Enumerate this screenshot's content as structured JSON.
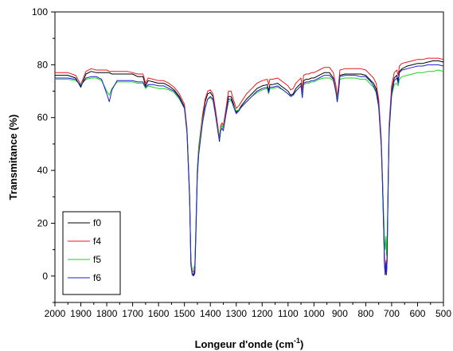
{
  "chart_data": {
    "type": "line",
    "xlabel": "Longeur d'onde (cm",
    "xlabel_sup": "-1",
    "xlabel_close": ")",
    "ylabel": "Transmitance (%)",
    "xlim": [
      2000,
      500
    ],
    "ylim": [
      -10,
      100
    ],
    "x_reversed": true,
    "x_ticks": [
      2000,
      1900,
      1800,
      1700,
      1600,
      1500,
      1400,
      1300,
      1200,
      1100,
      1000,
      900,
      800,
      700,
      600,
      500
    ],
    "y_ticks": [
      0,
      20,
      40,
      60,
      80,
      100
    ],
    "grid": false,
    "legend_position": "bottom-left",
    "x": [
      2000,
      1950,
      1920,
      1900,
      1880,
      1860,
      1840,
      1820,
      1800,
      1790,
      1780,
      1760,
      1740,
      1720,
      1700,
      1680,
      1660,
      1650,
      1640,
      1620,
      1600,
      1580,
      1560,
      1540,
      1520,
      1500,
      1490,
      1480,
      1475,
      1470,
      1465,
      1460,
      1455,
      1450,
      1445,
      1440,
      1430,
      1420,
      1410,
      1400,
      1390,
      1380,
      1370,
      1365,
      1360,
      1355,
      1350,
      1340,
      1330,
      1320,
      1310,
      1300,
      1290,
      1280,
      1260,
      1240,
      1220,
      1200,
      1180,
      1175,
      1170,
      1160,
      1140,
      1120,
      1100,
      1090,
      1080,
      1070,
      1060,
      1050,
      1045,
      1040,
      1030,
      1020,
      1010,
      1000,
      990,
      980,
      960,
      940,
      925,
      915,
      910,
      905,
      900,
      880,
      860,
      840,
      820,
      800,
      790,
      780,
      770,
      760,
      750,
      740,
      735,
      730,
      728,
      725,
      722,
      720,
      718,
      715,
      710,
      700,
      690,
      680,
      675,
      670,
      660,
      640,
      620,
      600,
      580,
      560,
      540,
      520,
      500
    ],
    "series": [
      {
        "name": "f0",
        "color": "#000000",
        "values": [
          76.0,
          76.0,
          75.0,
          71.5,
          76.5,
          77.5,
          77.0,
          77.0,
          77.0,
          77.0,
          76.5,
          76.5,
          76.5,
          76.5,
          76.5,
          75.5,
          75.5,
          72.0,
          74.0,
          73.5,
          73.0,
          73.0,
          72.0,
          70.5,
          68.0,
          64.0,
          55.0,
          30.0,
          5.0,
          1.0,
          0.5,
          2.0,
          20.0,
          40.0,
          48.0,
          52.0,
          60.0,
          66.0,
          69.0,
          69.5,
          68.0,
          62.0,
          55.0,
          51.0,
          56.0,
          57.0,
          56.0,
          62.0,
          68.0,
          68.0,
          65.0,
          62.0,
          63.0,
          64.5,
          67.0,
          69.0,
          71.0,
          72.0,
          72.5,
          70.0,
          72.5,
          72.5,
          73.0,
          71.5,
          70.0,
          68.5,
          69.0,
          71.0,
          72.0,
          73.0,
          68.0,
          74.0,
          74.5,
          74.5,
          75.0,
          75.0,
          75.5,
          76.0,
          77.0,
          77.0,
          75.0,
          70.0,
          66.0,
          70.0,
          76.0,
          76.5,
          76.5,
          76.5,
          76.5,
          76.0,
          75.0,
          74.0,
          73.0,
          71.0,
          65.0,
          50.0,
          35.0,
          15.0,
          5.0,
          0.5,
          5.0,
          0.5,
          5.0,
          25.0,
          55.0,
          70.0,
          75.0,
          76.0,
          74.0,
          77.5,
          78.5,
          79.5,
          80.0,
          80.5,
          80.5,
          81.0,
          81.5,
          81.5,
          81.0
        ]
      },
      {
        "name": "f4",
        "color": "#e41a1c",
        "values": [
          77.0,
          77.0,
          76.0,
          72.5,
          77.5,
          78.5,
          78.0,
          78.0,
          78.0,
          77.5,
          77.5,
          77.5,
          77.5,
          77.5,
          77.0,
          76.5,
          76.5,
          73.0,
          75.0,
          74.5,
          74.0,
          74.0,
          73.0,
          71.5,
          69.0,
          65.0,
          56.0,
          31.0,
          6.0,
          2.0,
          1.5,
          3.0,
          21.0,
          41.0,
          49.0,
          53.0,
          61.0,
          67.0,
          70.0,
          70.5,
          69.0,
          63.0,
          56.0,
          52.0,
          57.0,
          58.0,
          57.0,
          63.0,
          70.0,
          70.0,
          66.5,
          63.5,
          64.5,
          66.0,
          69.0,
          71.0,
          73.0,
          74.0,
          74.5,
          72.5,
          74.5,
          74.5,
          75.0,
          73.5,
          72.0,
          70.5,
          71.0,
          73.0,
          74.0,
          75.0,
          70.5,
          76.0,
          76.5,
          76.5,
          77.0,
          77.0,
          77.5,
          78.0,
          79.0,
          79.0,
          77.0,
          72.0,
          68.0,
          72.0,
          78.0,
          78.5,
          78.5,
          78.5,
          78.5,
          78.0,
          77.0,
          76.0,
          75.0,
          73.0,
          67.0,
          52.0,
          37.0,
          17.0,
          7.0,
          1.5,
          6.0,
          1.5,
          6.0,
          27.0,
          57.0,
          72.0,
          77.0,
          78.0,
          76.0,
          79.5,
          80.5,
          81.0,
          81.5,
          82.0,
          82.0,
          82.5,
          82.5,
          82.5,
          82.0
        ]
      },
      {
        "name": "f5",
        "color": "#1ad11a",
        "values": [
          74.5,
          74.5,
          74.0,
          72.5,
          74.5,
          75.0,
          75.0,
          74.0,
          70.0,
          68.5,
          71.0,
          73.5,
          73.5,
          73.5,
          73.5,
          73.0,
          73.0,
          71.0,
          72.0,
          71.5,
          71.0,
          71.0,
          70.5,
          69.5,
          67.0,
          63.5,
          55.0,
          30.0,
          5.0,
          2.0,
          3.0,
          4.0,
          22.0,
          40.0,
          48.0,
          52.0,
          59.0,
          64.0,
          67.0,
          67.5,
          66.5,
          61.0,
          55.0,
          52.0,
          56.0,
          57.0,
          56.0,
          61.0,
          66.0,
          66.5,
          64.5,
          62.5,
          63.0,
          64.0,
          66.0,
          68.0,
          69.5,
          70.5,
          71.0,
          69.0,
          71.0,
          71.0,
          71.5,
          70.5,
          69.0,
          68.0,
          68.5,
          70.0,
          71.0,
          72.0,
          68.5,
          72.5,
          73.0,
          73.0,
          73.5,
          73.5,
          74.0,
          74.5,
          75.0,
          75.0,
          74.0,
          70.0,
          67.0,
          70.0,
          74.5,
          75.0,
          75.0,
          75.0,
          74.5,
          74.5,
          73.5,
          72.5,
          71.5,
          69.5,
          64.0,
          50.0,
          36.0,
          21.0,
          15.0,
          10.0,
          15.0,
          8.0,
          12.0,
          27.0,
          55.0,
          68.0,
          72.5,
          73.0,
          72.0,
          74.5,
          75.5,
          76.0,
          76.5,
          77.0,
          77.0,
          77.5,
          77.5,
          78.0,
          77.5
        ]
      },
      {
        "name": "f6",
        "color": "#1f1fd6",
        "values": [
          75.0,
          75.0,
          74.5,
          72.0,
          75.0,
          75.5,
          75.5,
          74.5,
          69.0,
          66.0,
          70.5,
          74.0,
          74.0,
          74.0,
          74.0,
          73.5,
          73.5,
          71.5,
          72.5,
          72.5,
          72.0,
          72.0,
          71.0,
          70.0,
          67.5,
          63.5,
          54.0,
          29.0,
          4.0,
          0.5,
          0.0,
          1.0,
          18.0,
          38.0,
          46.0,
          50.0,
          58.0,
          63.5,
          67.0,
          68.0,
          67.0,
          61.0,
          54.0,
          51.5,
          55.0,
          56.0,
          55.0,
          61.0,
          67.0,
          67.0,
          64.0,
          61.5,
          62.5,
          64.0,
          66.0,
          68.0,
          70.0,
          71.0,
          71.5,
          69.5,
          71.5,
          71.5,
          72.0,
          70.5,
          69.0,
          68.0,
          68.5,
          70.0,
          71.0,
          72.0,
          67.5,
          73.0,
          73.5,
          73.5,
          74.0,
          74.0,
          74.5,
          75.0,
          76.0,
          76.0,
          74.5,
          69.5,
          66.0,
          69.5,
          75.5,
          76.0,
          76.0,
          76.0,
          75.5,
          75.5,
          74.5,
          73.5,
          72.0,
          70.0,
          64.0,
          49.0,
          34.0,
          15.0,
          6.0,
          1.0,
          5.0,
          0.5,
          5.0,
          25.0,
          54.0,
          69.0,
          74.0,
          75.0,
          73.0,
          77.0,
          78.0,
          78.5,
          79.0,
          79.5,
          79.5,
          80.0,
          80.0,
          80.0,
          79.5
        ]
      }
    ]
  }
}
